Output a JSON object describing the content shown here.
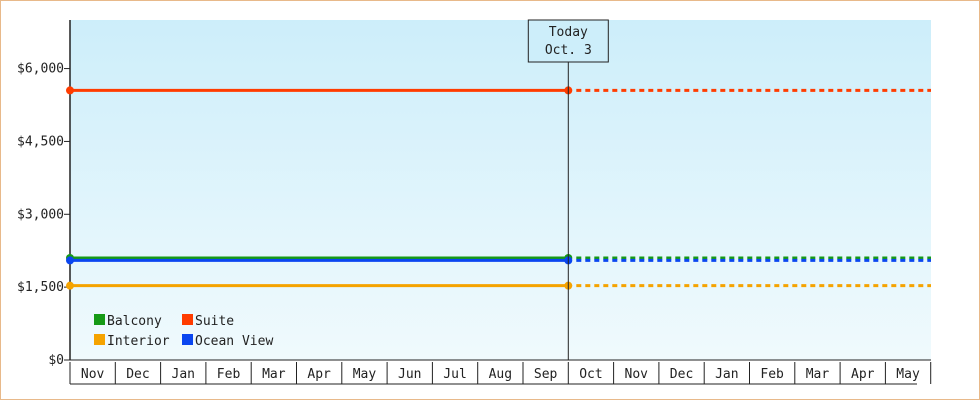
{
  "chart_data": {
    "type": "line",
    "y_ticks": [
      "$0",
      "$1,500",
      "$3,000",
      "$4,500",
      "$6,000"
    ],
    "y_tick_values": [
      0,
      1500,
      3000,
      4500,
      6000
    ],
    "ylim": [
      0,
      7000
    ],
    "months": [
      "Nov",
      "Dec",
      "Jan",
      "Feb",
      "Mar",
      "Apr",
      "May",
      "Jun",
      "Jul",
      "Aug",
      "Sep",
      "Oct",
      "Nov",
      "Dec",
      "Jan",
      "Feb",
      "Mar",
      "Apr",
      "May"
    ],
    "today_label": "Today",
    "today_date": "Oct. 3",
    "today_month_index": 11,
    "series": [
      {
        "name": "Balcony",
        "color": "#169a16",
        "value": 2100,
        "forecast_value": 2100
      },
      {
        "name": "Suite",
        "color": "#ff3c00",
        "value": 5550,
        "forecast_value": 5550
      },
      {
        "name": "Interior",
        "color": "#f5a300",
        "value": 1530,
        "forecast_value": 1530
      },
      {
        "name": "Ocean View",
        "color": "#0a46f0",
        "value": 2050,
        "forecast_value": 2050
      }
    ],
    "grid": false,
    "legend_position": "bottom-left"
  }
}
